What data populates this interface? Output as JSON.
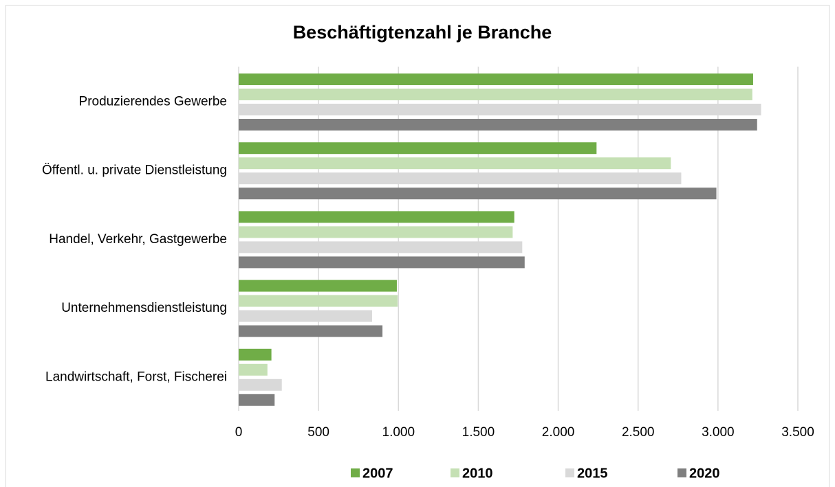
{
  "chart_data": {
    "type": "hbar",
    "title": "Beschäftigtenzahl je Branche",
    "categories": [
      "Produzierendes Gewerbe",
      "Öffentl. u. private Dienstleistung",
      "Handel, Verkehr, Gastgewerbe",
      "Unternehmensdienstleistung",
      "Landwirtschaft, Forst, Fischerei"
    ],
    "series": [
      {
        "name": "2007",
        "color": "#70ad47",
        "values": [
          3220,
          2240,
          1725,
          990,
          205
        ]
      },
      {
        "name": "2010",
        "color": "#c5e0b4",
        "values": [
          3215,
          2705,
          1715,
          995,
          180
        ]
      },
      {
        "name": "2015",
        "color": "#d9d9d9",
        "values": [
          3270,
          2770,
          1775,
          835,
          270
        ]
      },
      {
        "name": "2020",
        "color": "#7f7f7f",
        "values": [
          3245,
          2990,
          1790,
          900,
          225
        ]
      }
    ],
    "xlim": [
      0,
      3500
    ],
    "xticks": [
      0,
      500,
      {
        "value": 1000,
        "label": "1.000"
      },
      {
        "value": 1500,
        "label": "1.500"
      },
      {
        "value": 2000,
        "label": "2.000"
      },
      {
        "value": 2500,
        "label": "2.500"
      },
      {
        "value": 3000,
        "label": "3.000"
      },
      {
        "value": 3500,
        "label": "3.500"
      }
    ],
    "grid": true,
    "legend": "bottom"
  }
}
